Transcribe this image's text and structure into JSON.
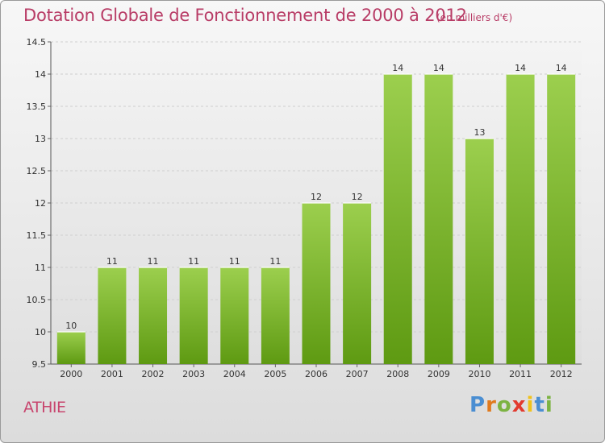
{
  "title": "Dotation Globale de Fonctionnement de 2000 à 2012",
  "subtitle": "(en milliers d'€)",
  "commune": "ATHIE",
  "logo": {
    "text": "Proxiti",
    "colors": [
      "#4a8ed2",
      "#e07a1e",
      "#7cb342",
      "#e23a2f",
      "#f0c21b",
      "#4a8ed2",
      "#7cb342"
    ]
  },
  "colors": {
    "bar_top": "#9ccf4e",
    "bar_bottom": "#5e9a12",
    "title": "#b83c66",
    "grid": "#cfcfcf"
  },
  "chart_data": {
    "type": "bar",
    "categories": [
      "2000",
      "2001",
      "2002",
      "2003",
      "2004",
      "2005",
      "2006",
      "2007",
      "2008",
      "2009",
      "2010",
      "2011",
      "2012"
    ],
    "values": [
      10,
      11,
      11,
      11,
      11,
      11,
      12,
      12,
      14,
      14,
      13,
      14,
      14
    ],
    "data_labels": [
      "10",
      "11",
      "11",
      "11",
      "11",
      "11",
      "12",
      "12",
      "14",
      "14",
      "13",
      "14",
      "14"
    ],
    "ylim": [
      9.5,
      14.5
    ],
    "yticks": [
      9.5,
      10,
      10.5,
      11,
      11.5,
      12,
      12.5,
      13,
      13.5,
      14,
      14.5
    ],
    "ytick_labels": [
      "9.5",
      "10",
      "10.5",
      "11",
      "11.5",
      "12",
      "12.5",
      "13",
      "13.5",
      "14",
      "14.5"
    ],
    "grid": true,
    "xlabel": "",
    "ylabel": ""
  }
}
